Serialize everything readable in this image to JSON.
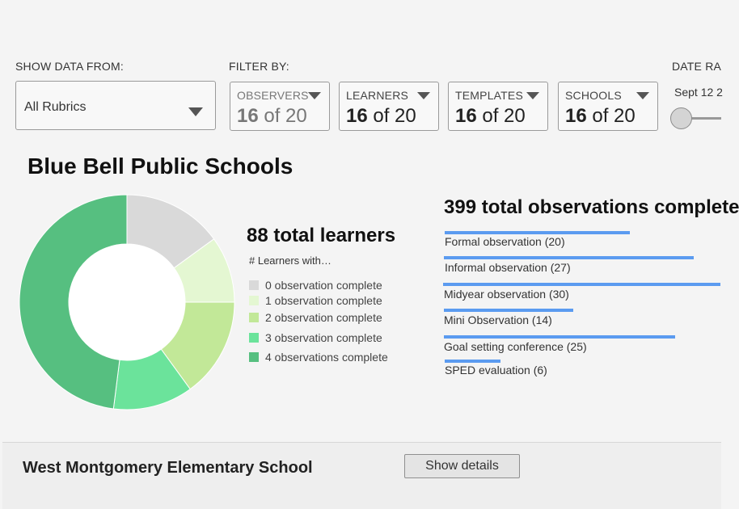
{
  "show_data": {
    "label": "SHOW DATA FROM:",
    "selected": "All Rubrics"
  },
  "filter": {
    "label": "FILTER BY:",
    "items": [
      {
        "name": "OBSERVERS",
        "selected": "16",
        "of_text": "of 20"
      },
      {
        "name": "LEARNERS",
        "selected": "16",
        "of_text": "of 20"
      },
      {
        "name": "TEMPLATES",
        "selected": "16",
        "of_text": "of 20"
      },
      {
        "name": "SCHOOLS",
        "selected": "16",
        "of_text": "of 20"
      }
    ]
  },
  "date_range": {
    "label": "DATE RA",
    "value": "Sept 12 2"
  },
  "district": {
    "title": "Blue Bell Public Schools"
  },
  "learners": {
    "title": "88 total learners",
    "subtitle": "# Learners with…",
    "legend": [
      {
        "label": "0 observation complete",
        "color": "#d9d9d9"
      },
      {
        "label": "1 observation complete",
        "color": "#e4f7d2"
      },
      {
        "label": "2 observation complete",
        "color": "#c2e898"
      },
      {
        "label": "3 observation complete",
        "color": "#6be39b"
      },
      {
        "label": "4 observations complete",
        "color": "#56bf80"
      }
    ]
  },
  "chart_data": {
    "type": "pie",
    "title": "",
    "categories": [
      "0 observation complete",
      "1 observation complete",
      "2 observation complete",
      "3 observation complete",
      "4 observations complete"
    ],
    "values": [
      15,
      10,
      15,
      12,
      48
    ],
    "colors": [
      "#d9d9d9",
      "#e4f7d2",
      "#c2e898",
      "#6be39b",
      "#56bf80"
    ],
    "donut": true
  },
  "observations": {
    "title": "399 total observations complete",
    "max": 30,
    "items": [
      {
        "label": "Formal observation (20)",
        "value": 20
      },
      {
        "label": "Informal observation (27)",
        "value": 27
      },
      {
        "label": "Midyear observation (30)",
        "value": 30
      },
      {
        "label": "Mini Observation (14)",
        "value": 14
      },
      {
        "label": "Goal setting conference (25)",
        "value": 25
      },
      {
        "label": "SPED evaluation (6)",
        "value": 6
      }
    ]
  },
  "school": {
    "name": "West Montgomery Elementary School",
    "button_label": "Show details"
  }
}
